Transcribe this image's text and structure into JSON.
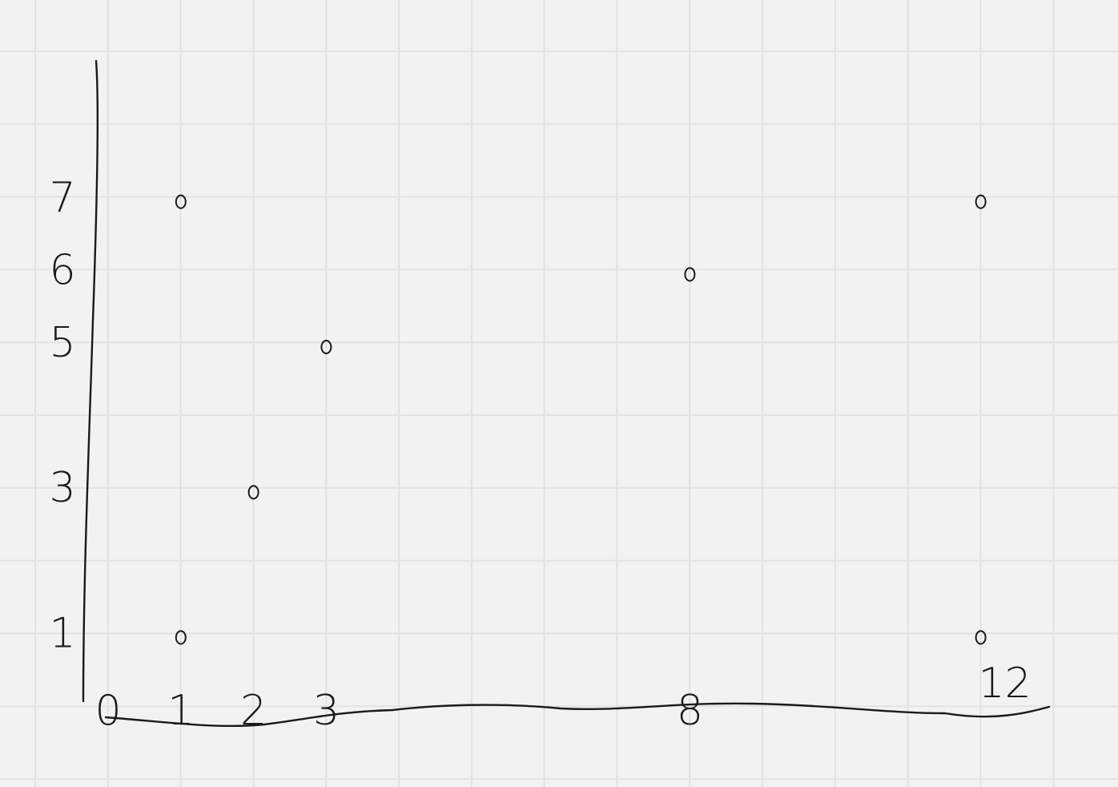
{
  "chart_data": {
    "type": "scatter",
    "title": "",
    "xlabel": "",
    "ylabel": "",
    "xlim": [
      0,
      12.5
    ],
    "ylim": [
      0,
      8
    ],
    "grid": true,
    "x_ticks": [
      "0",
      "1",
      "2",
      "3",
      "8",
      "12"
    ],
    "y_ticks": [
      "1",
      "3",
      "5",
      "6",
      "7"
    ],
    "points": [
      {
        "x": 1,
        "y": 7
      },
      {
        "x": 1,
        "y": 1
      },
      {
        "x": 2,
        "y": 3
      },
      {
        "x": 3,
        "y": 5
      },
      {
        "x": 8,
        "y": 6
      },
      {
        "x": 12,
        "y": 7
      },
      {
        "x": 12,
        "y": 1
      }
    ]
  }
}
